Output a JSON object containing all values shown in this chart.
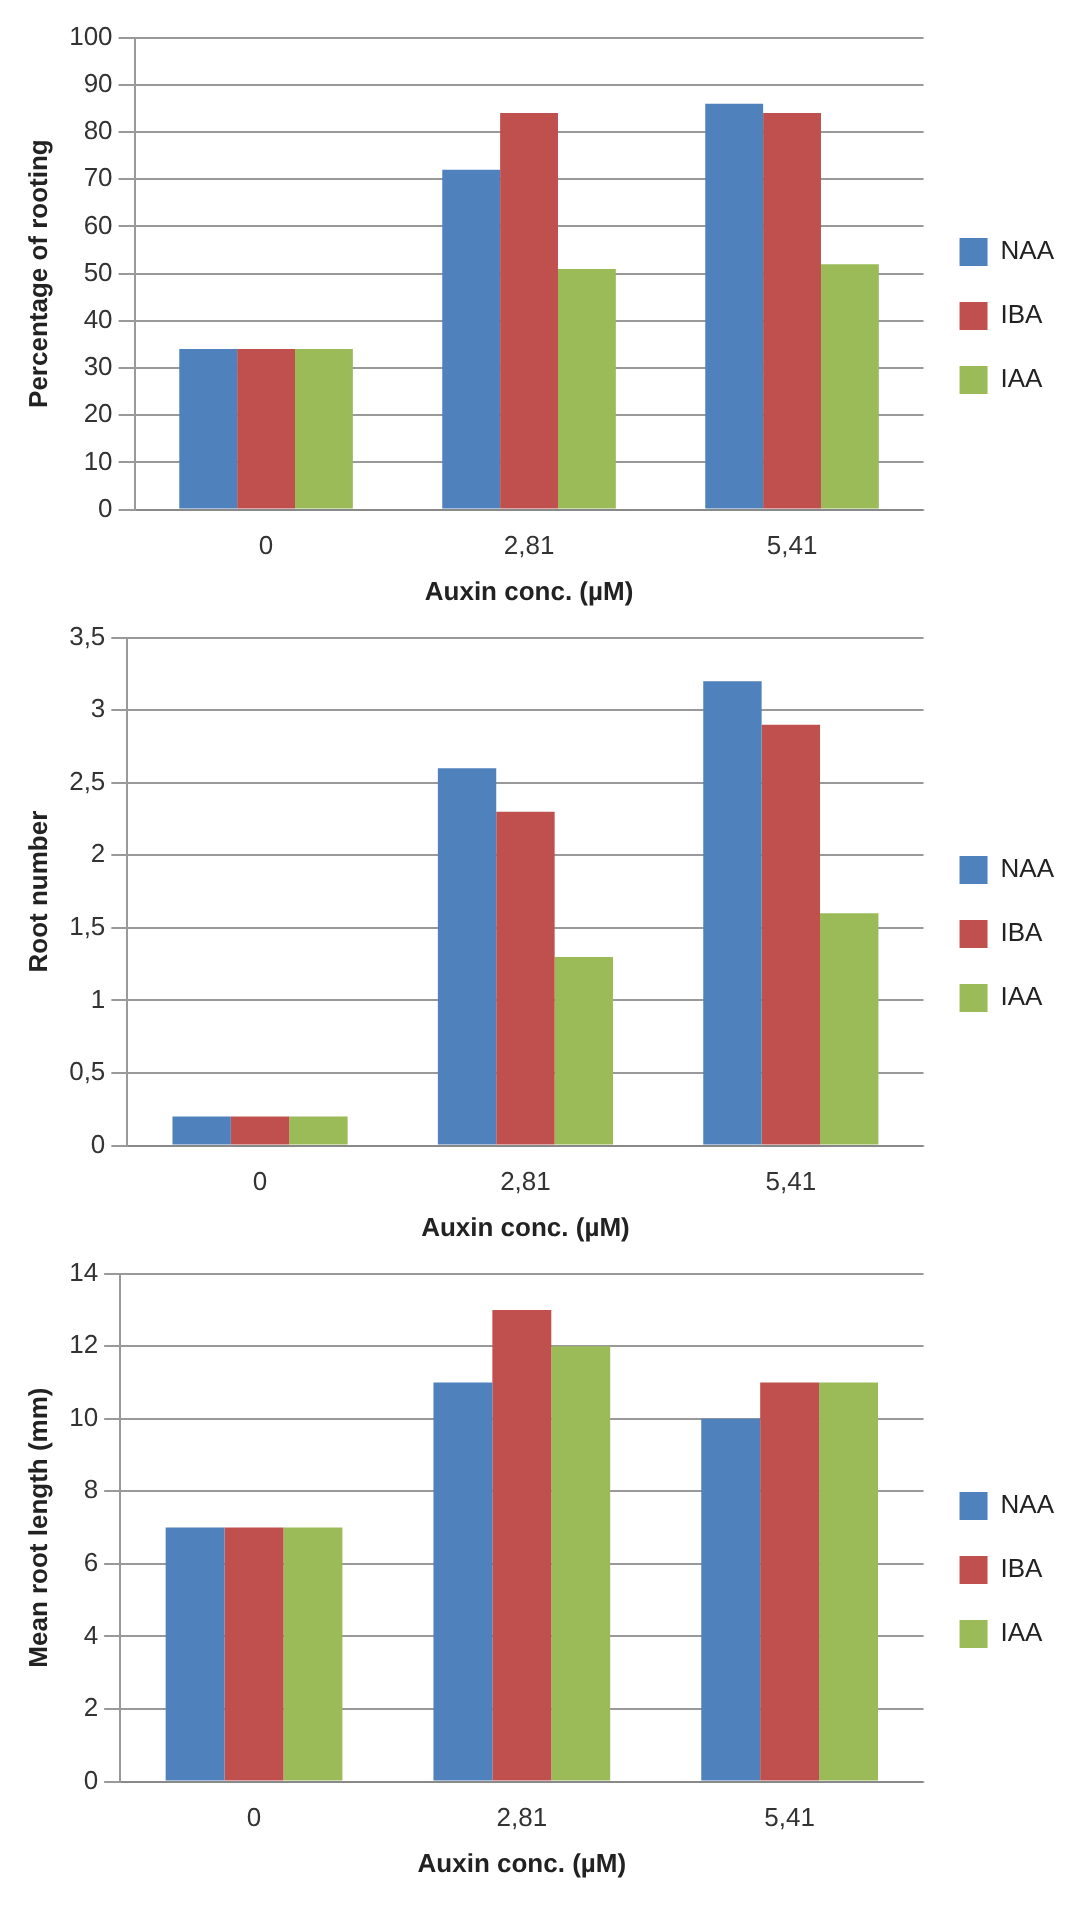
{
  "chart_data": [
    {
      "type": "bar",
      "xlabel": "Auxin conc. (µM)",
      "ylabel": "Percentage of rooting",
      "categories": [
        "0",
        "2,81",
        "5,41"
      ],
      "series": [
        {
          "name": "NAA",
          "color": "#4f81bd",
          "values": [
            34,
            72,
            86
          ]
        },
        {
          "name": "IBA",
          "color": "#c0504d",
          "values": [
            34,
            84,
            84
          ]
        },
        {
          "name": "IAA",
          "color": "#9bbb59",
          "values": [
            34,
            51,
            52
          ]
        }
      ],
      "ylim": [
        0,
        100
      ],
      "yticks": [
        0,
        10,
        20,
        30,
        40,
        50,
        60,
        70,
        80,
        90,
        100
      ],
      "grid": "y",
      "legend": "right"
    },
    {
      "type": "bar",
      "xlabel": "Auxin conc. (µM)",
      "ylabel": "Root number",
      "categories": [
        "0",
        "2,81",
        "5,41"
      ],
      "series": [
        {
          "name": "NAA",
          "color": "#4f81bd",
          "values": [
            0.2,
            2.6,
            3.2
          ]
        },
        {
          "name": "IBA",
          "color": "#c0504d",
          "values": [
            0.2,
            2.3,
            2.9
          ]
        },
        {
          "name": "IAA",
          "color": "#9bbb59",
          "values": [
            0.2,
            1.3,
            1.6
          ]
        }
      ],
      "ylim": [
        0,
        3.5
      ],
      "yticks": [
        0,
        {
          "value": 0.5,
          "label": "0,5"
        },
        1,
        {
          "value": 1.5,
          "label": "1,5"
        },
        2,
        {
          "value": 2.5,
          "label": "2,5"
        },
        3,
        {
          "value": 3.5,
          "label": "3,5"
        }
      ],
      "grid": "y",
      "legend": "right"
    },
    {
      "type": "bar",
      "xlabel": "Auxin conc. (µM)",
      "ylabel": "Mean root length (mm)",
      "categories": [
        "0",
        "2,81",
        "5,41"
      ],
      "series": [
        {
          "name": "NAA",
          "color": "#4f81bd",
          "values": [
            7,
            11,
            10
          ]
        },
        {
          "name": "IBA",
          "color": "#c0504d",
          "values": [
            7,
            13,
            11
          ]
        },
        {
          "name": "IAA",
          "color": "#9bbb59",
          "values": [
            7,
            12,
            11
          ]
        }
      ],
      "ylim": [
        0,
        14
      ],
      "yticks": [
        0,
        2,
        4,
        6,
        8,
        10,
        12,
        14
      ],
      "grid": "y",
      "legend": "right"
    }
  ]
}
